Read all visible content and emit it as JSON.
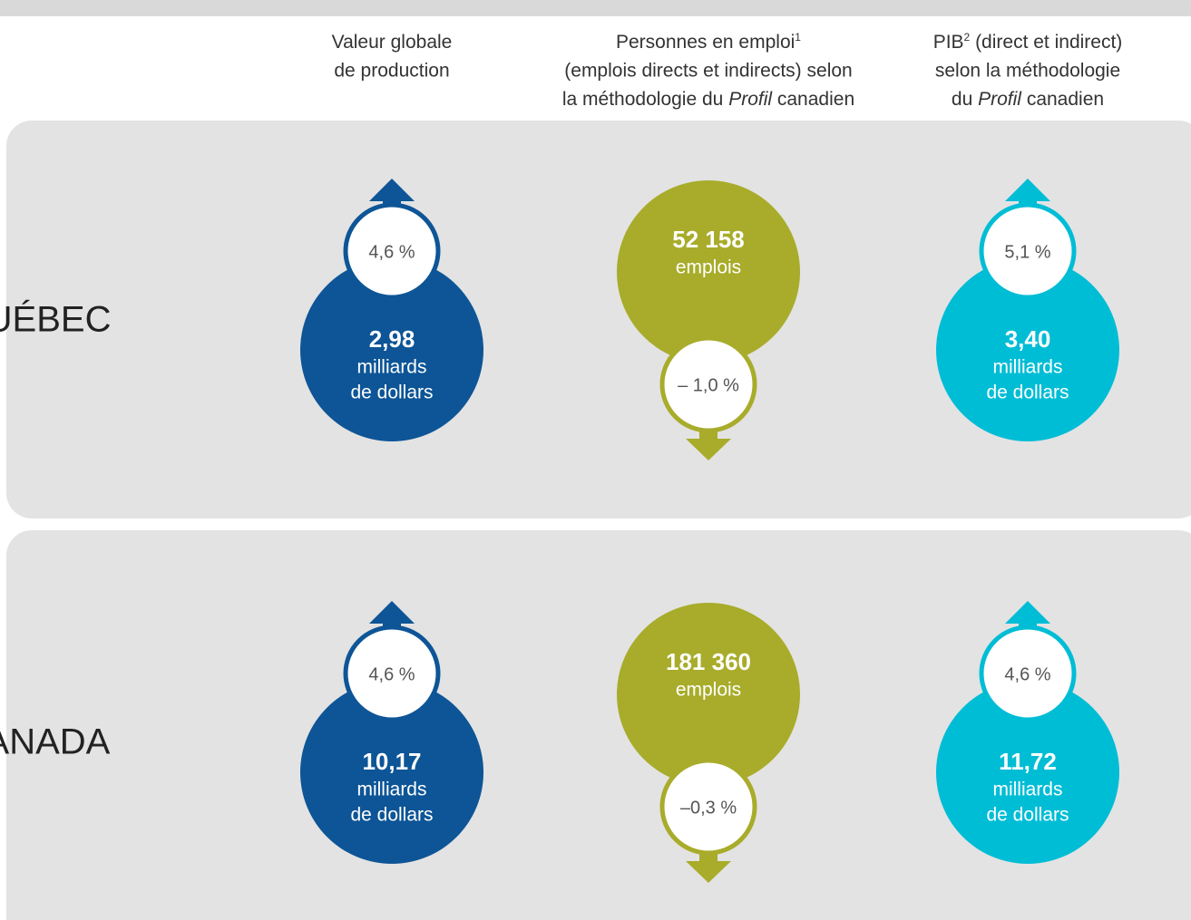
{
  "columns": [
    {
      "color": "#0d5596",
      "lines": [
        [
          {
            "text": "Valeur globale"
          }
        ],
        [
          {
            "text": "de production"
          }
        ]
      ]
    },
    {
      "color": "#a8ac2a",
      "lines": [
        [
          {
            "text": "Personnes en emploi"
          },
          {
            "text": "1",
            "style": "sup"
          }
        ],
        [
          {
            "text": "(emplois directs et indirects) selon"
          }
        ],
        [
          {
            "text": "la méthodologie du "
          },
          {
            "text": "Profil",
            "style": "italic"
          },
          {
            "text": " canadien"
          }
        ]
      ]
    },
    {
      "color": "#00bdd6",
      "lines": [
        [
          {
            "text": "PIB"
          },
          {
            "text": "2",
            "style": "sup"
          },
          {
            "text": " (direct et indirect)"
          }
        ],
        [
          {
            "text": "selon la méthodologie"
          }
        ],
        [
          {
            "text": "du "
          },
          {
            "text": "Profil",
            "style": "italic"
          },
          {
            "text": " canadien"
          }
        ]
      ]
    }
  ],
  "rows": [
    {
      "region": "QUÉBEC",
      "items": [
        {
          "change": "4,6 %",
          "value": "2,98",
          "unit_lines": [
            "milliards",
            "de dollars"
          ]
        },
        {
          "change": "– 1,0 %",
          "value": "52 158",
          "unit_lines": [
            "emplois"
          ]
        },
        {
          "change": "5,1 %",
          "value": "3,40",
          "unit_lines": [
            "milliards",
            "de dollars"
          ]
        }
      ]
    },
    {
      "region": "CANADA",
      "items": [
        {
          "change": "4,6 %",
          "value": "10,17",
          "unit_lines": [
            "milliards",
            "de dollars"
          ]
        },
        {
          "change": "–0,3 %",
          "value": "181 360",
          "unit_lines": [
            "emplois"
          ]
        },
        {
          "change": "4,6 %",
          "value": "11,72",
          "unit_lines": [
            "milliards",
            "de dollars"
          ]
        }
      ]
    }
  ]
}
